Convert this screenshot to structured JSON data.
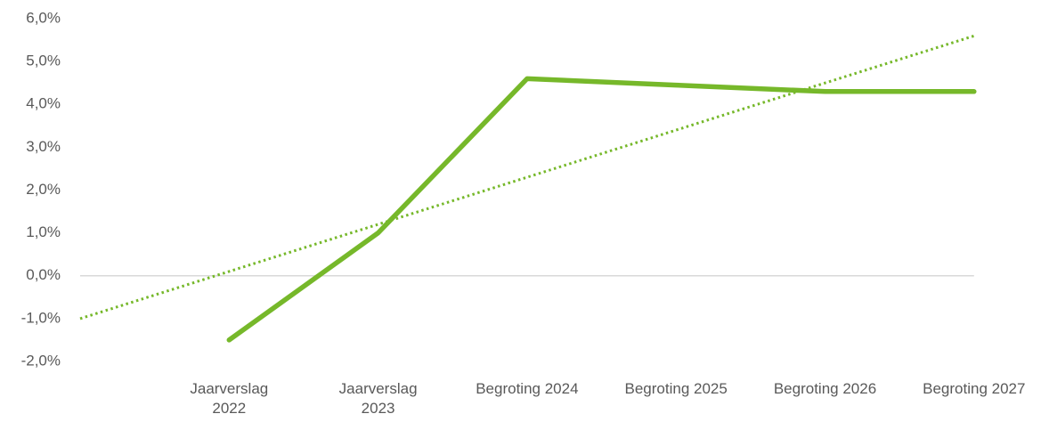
{
  "chart_data": {
    "type": "line",
    "categories": [
      null,
      "Jaarverslag 2022",
      "Jaarverslag 2023",
      "Begroting 2024",
      "Begroting 2025",
      "Begroting 2026",
      "Begroting 2027"
    ],
    "series": [
      {
        "color": "#76b82a",
        "style": "solid",
        "values": [
          null,
          -1.5,
          1.0,
          4.6,
          4.45,
          4.3,
          4.3
        ]
      },
      {
        "color": "#76b82a",
        "style": "dotted",
        "values": [
          -1.0,
          0.1,
          1.2,
          2.3,
          3.4,
          4.5,
          5.6
        ]
      }
    ],
    "ylim": [
      -2,
      6
    ],
    "yticks": [
      {
        "value": -2,
        "label": "-2,0%"
      },
      {
        "value": -1,
        "label": "-1,0%"
      },
      {
        "value": 0,
        "label": "0,0%"
      },
      {
        "value": 1,
        "label": "1,0%"
      },
      {
        "value": 2,
        "label": "2,0%"
      },
      {
        "value": 3,
        "label": "3,0%"
      },
      {
        "value": 4,
        "label": "4,0%"
      },
      {
        "value": 5,
        "label": "5,0%"
      },
      {
        "value": 6,
        "label": "6,0%"
      }
    ]
  }
}
